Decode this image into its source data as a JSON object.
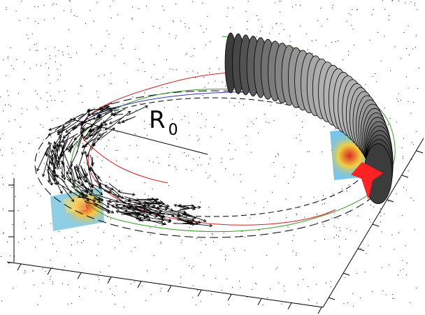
{
  "label": {
    "main": "R",
    "subscript": "0"
  }
}
